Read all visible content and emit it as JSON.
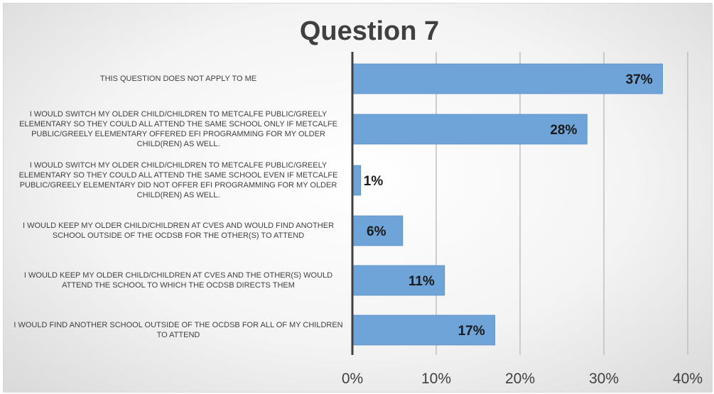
{
  "chart_data": {
    "type": "bar",
    "orientation": "horizontal",
    "title": "Question 7",
    "categories": [
      "THIS QUESTION DOES NOT APPLY TO ME",
      "I WOULD SWITCH MY OLDER CHILD/CHILDREN TO METCALFE PUBLIC/GREELY ELEMENTARY SO THEY COULD ALL ATTEND THE SAME SCHOOL ONLY IF METCALFE PUBLIC/GREELY ELEMENTARY OFFERED EFI PROGRAMMING FOR MY OLDER CHILD(REN) AS WELL.",
      "I WOULD SWITCH MY OLDER CHILD/CHILDREN TO METCALFE PUBLIC/GREELY ELEMENTARY SO THEY COULD ALL ATTEND THE SAME SCHOOL EVEN IF METCALFE PUBLIC/GREELY ELEMENTARY DID NOT OFFER EFI PROGRAMMING FOR MY OLDER CHILD(REN) AS WELL.",
      "I WOULD KEEP MY OLDER CHILD/CHILDREN AT CVES AND WOULD FIND ANOTHER SCHOOL OUTSIDE OF THE OCDSB FOR THE OTHER(S) TO ATTEND",
      "I WOULD KEEP MY OLDER CHILD/CHILDREN AT CVES AND THE OTHER(S) WOULD ATTEND THE SCHOOL TO WHICH THE OCDSB DIRECTS THEM",
      "I WOULD FIND ANOTHER SCHOOL OUTSIDE OF THE OCDSB FOR ALL OF MY CHILDREN TO ATTEND"
    ],
    "values": [
      0.37,
      0.28,
      0.01,
      0.06,
      0.11,
      0.17
    ],
    "value_labels": [
      "37%",
      "28%",
      "1%",
      "6%",
      "11%",
      "17%"
    ],
    "xlim": [
      0,
      0.4
    ],
    "xticks": [
      0,
      0.1,
      0.2,
      0.3,
      0.4
    ],
    "xtick_labels": [
      "0%",
      "10%",
      "20%",
      "30%",
      "40%"
    ],
    "xlabel": "",
    "ylabel": "",
    "grid": "vertical",
    "legend": "none",
    "colors": {
      "bar": "#6fa4d8",
      "bar_edge": "#5b8fc7",
      "axis": "#404040",
      "grid": "#bfbfbf"
    }
  }
}
